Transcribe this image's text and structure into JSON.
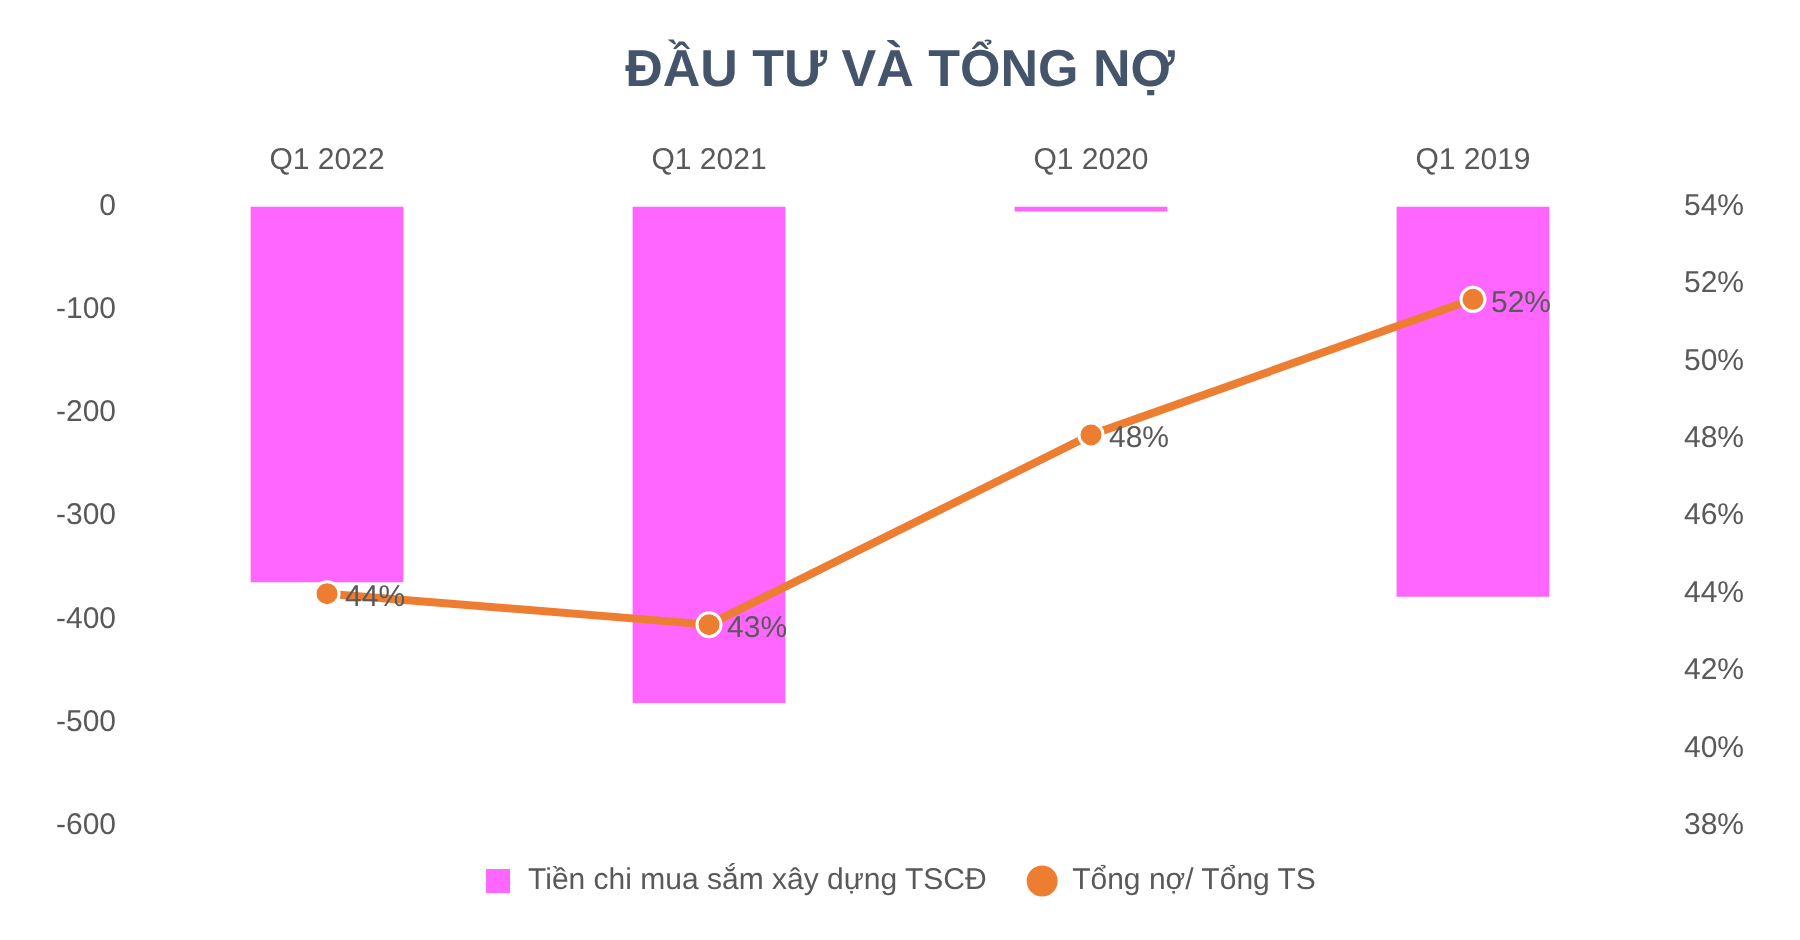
{
  "chart_data": {
    "type": "bar",
    "title": "ĐẦU TƯ VÀ TỔNG NỢ",
    "categories": [
      "Q1 2022",
      "Q1 2021",
      "Q1 2020",
      "Q1 2019"
    ],
    "series": [
      {
        "name": "Tiền chi mua sắm xây dựng TSCĐ",
        "color": "#ff66ff",
        "values": [
          -364,
          -481,
          -5,
          -378
        ]
      },
      {
        "name": "Tổng nợ/ Tổng TS",
        "type": "line",
        "axis": "y2",
        "color": "#ed7d31",
        "values": [
          44.0,
          43.2,
          48.1,
          51.6
        ],
        "value_labels": [
          "44%",
          "43%",
          "48%",
          "52%"
        ],
        "marker": "circle"
      }
    ],
    "ylim": [
      -600,
      0
    ],
    "yticks": [
      -600,
      -500,
      -400,
      -300,
      -200,
      -100,
      0
    ],
    "y2lim": [
      38,
      54
    ],
    "y2ticks": [
      {
        "value": 38,
        "label": "38%"
      },
      {
        "value": 40,
        "label": "40%"
      },
      {
        "value": 42,
        "label": "42%"
      },
      {
        "value": 44,
        "label": "44%"
      },
      {
        "value": 46,
        "label": "46%"
      },
      {
        "value": 48,
        "label": "48%"
      },
      {
        "value": 50,
        "label": "50%"
      },
      {
        "value": 52,
        "label": "52%"
      },
      {
        "value": 54,
        "label": "54%"
      }
    ],
    "grid": false,
    "legend": "bottom"
  }
}
